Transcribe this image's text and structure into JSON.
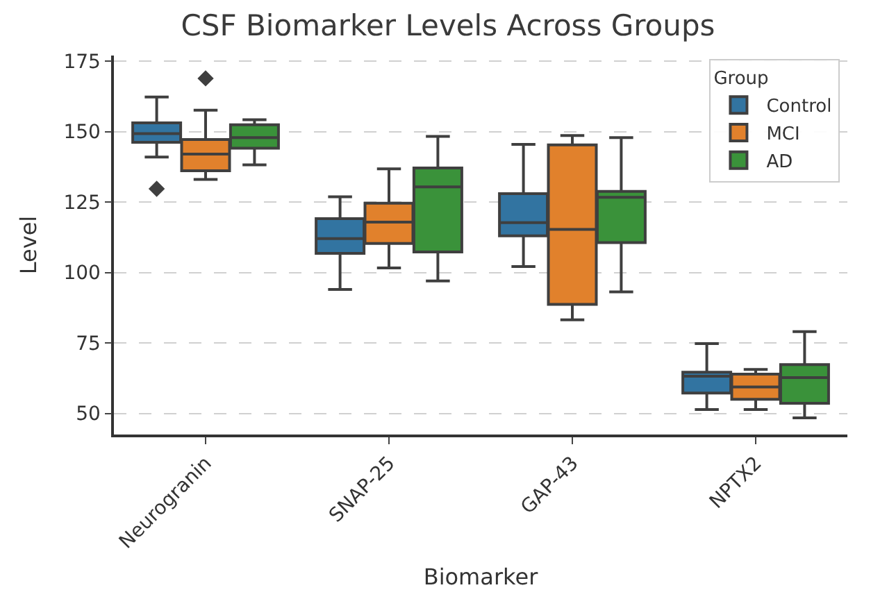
{
  "chart_data": {
    "type": "box",
    "title": "CSF Biomarker Levels Across Groups",
    "xlabel": "Biomarker",
    "ylabel": "Level",
    "legend_title": "Group",
    "legend": "top right",
    "grid": "y",
    "marker": "diamond",
    "categories": [
      "Neurogranin",
      "SNAP-25",
      "GAP-43",
      "NPTX2"
    ],
    "ylim": [
      42.5,
      177
    ],
    "yticks": [
      50,
      75,
      100,
      125,
      150,
      175
    ],
    "series": [
      {
        "name": "Control",
        "color": "#3274a1",
        "boxes": [
          {
            "low": 141,
            "q1": 146.2,
            "median": 149.3,
            "q3": 153.1,
            "high": 162.3,
            "outliers": [
              129.7
            ]
          },
          {
            "low": 94,
            "q1": 106.8,
            "median": 112,
            "q3": 119.1,
            "high": 126.9
          },
          {
            "low": 102.1,
            "q1": 113,
            "median": 117.7,
            "q3": 128,
            "high": 145.5
          },
          {
            "low": 51.4,
            "q1": 57.2,
            "median": 63.2,
            "q3": 64.6,
            "high": 74.8
          }
        ]
      },
      {
        "name": "MCI",
        "color": "#e1812c",
        "boxes": [
          {
            "low": 133,
            "q1": 136.1,
            "median": 142,
            "q3": 147.2,
            "high": 157.6,
            "outliers": [
              168.9
            ]
          },
          {
            "low": 101.6,
            "q1": 110.3,
            "median": 117.9,
            "q3": 124.6,
            "high": 136.8
          },
          {
            "low": 83.2,
            "q1": 88.7,
            "median": 115.3,
            "q3": 145.3,
            "high": 148.6
          },
          {
            "low": 51.4,
            "q1": 55,
            "median": 59.4,
            "q3": 63.9,
            "high": 65.6
          }
        ]
      },
      {
        "name": "AD",
        "color": "#3a923a",
        "boxes": [
          {
            "low": 138.2,
            "q1": 144.1,
            "median": 147.9,
            "q3": 152.4,
            "high": 154.2
          },
          {
            "low": 97,
            "q1": 107.3,
            "median": 130.4,
            "q3": 137.1,
            "high": 148.3
          },
          {
            "low": 93.1,
            "q1": 110.6,
            "median": 126.7,
            "q3": 128.8,
            "high": 147.9
          },
          {
            "low": 48.4,
            "q1": 53.6,
            "median": 62.7,
            "q3": 67.3,
            "high": 79
          }
        ]
      }
    ]
  }
}
